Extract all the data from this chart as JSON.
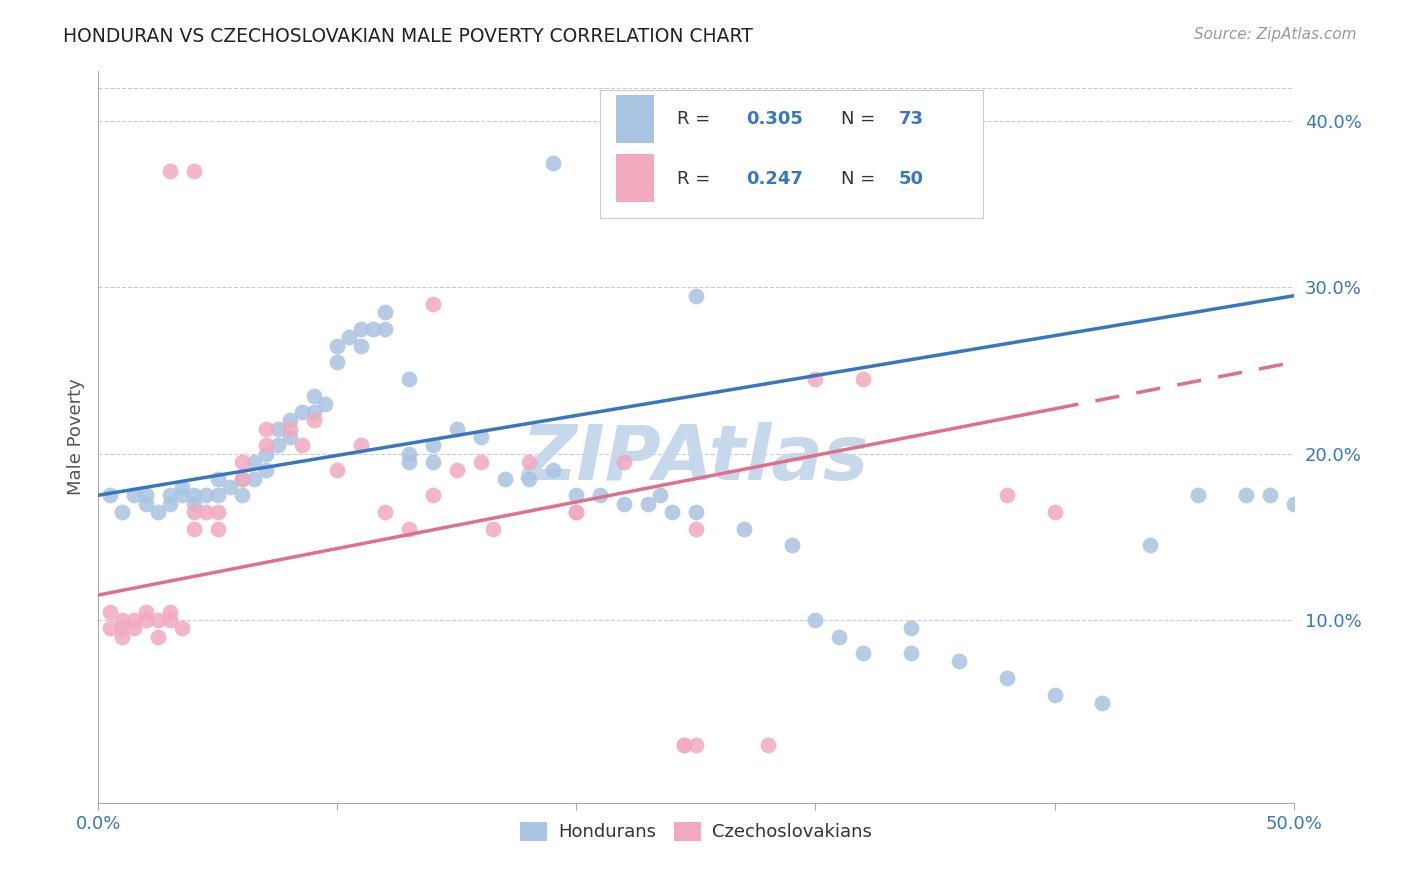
{
  "title": "HONDURAN VS CZECHOSLOVAKIAN MALE POVERTY CORRELATION CHART",
  "source": "Source: ZipAtlas.com",
  "ylabel": "Male Poverty",
  "xlim": [
    0.0,
    0.5
  ],
  "ylim": [
    -0.01,
    0.43
  ],
  "x_ticks": [
    0.0,
    0.1,
    0.2,
    0.3,
    0.4,
    0.5
  ],
  "x_tick_labels_show": [
    "0.0%",
    "",
    "",
    "",
    "",
    "50.0%"
  ],
  "y_ticks_right": [
    0.1,
    0.2,
    0.3,
    0.4
  ],
  "y_tick_labels_right": [
    "10.0%",
    "20.0%",
    "30.0%",
    "40.0%"
  ],
  "honduran_color": "#a8c4e0",
  "czechoslovakian_color": "#f2aabf",
  "trendline_honduran_color": "#3777bf",
  "trendline_czechoslovakian_color": "#e0708a",
  "watermark_color": "#c5d8ec",
  "background_color": "#ffffff",
  "legend_bottom_label1": "Hondurans",
  "legend_bottom_label2": "Czechoslovakians",
  "honduran_x": [
    0.005,
    0.01,
    0.015,
    0.02,
    0.02,
    0.025,
    0.03,
    0.03,
    0.035,
    0.035,
    0.04,
    0.04,
    0.045,
    0.05,
    0.05,
    0.055,
    0.06,
    0.06,
    0.065,
    0.065,
    0.07,
    0.07,
    0.075,
    0.075,
    0.08,
    0.08,
    0.085,
    0.09,
    0.09,
    0.095,
    0.1,
    0.1,
    0.105,
    0.11,
    0.11,
    0.115,
    0.12,
    0.12,
    0.13,
    0.13,
    0.14,
    0.14,
    0.15,
    0.16,
    0.17,
    0.18,
    0.19,
    0.2,
    0.21,
    0.22,
    0.23,
    0.235,
    0.24,
    0.25,
    0.27,
    0.29,
    0.3,
    0.31,
    0.32,
    0.34,
    0.36,
    0.38,
    0.4,
    0.42,
    0.44,
    0.46,
    0.48,
    0.49,
    0.5,
    0.13,
    0.19,
    0.25,
    0.34
  ],
  "honduran_y": [
    0.175,
    0.165,
    0.175,
    0.17,
    0.175,
    0.165,
    0.175,
    0.17,
    0.175,
    0.18,
    0.175,
    0.17,
    0.175,
    0.185,
    0.175,
    0.18,
    0.185,
    0.175,
    0.195,
    0.185,
    0.2,
    0.19,
    0.215,
    0.205,
    0.22,
    0.21,
    0.225,
    0.235,
    0.225,
    0.23,
    0.265,
    0.255,
    0.27,
    0.275,
    0.265,
    0.275,
    0.285,
    0.275,
    0.2,
    0.195,
    0.205,
    0.195,
    0.215,
    0.21,
    0.185,
    0.185,
    0.19,
    0.175,
    0.175,
    0.17,
    0.17,
    0.175,
    0.165,
    0.165,
    0.155,
    0.145,
    0.1,
    0.09,
    0.08,
    0.08,
    0.075,
    0.065,
    0.055,
    0.05,
    0.145,
    0.175,
    0.175,
    0.175,
    0.17,
    0.245,
    0.375,
    0.295,
    0.095
  ],
  "czechoslovakian_x": [
    0.005,
    0.005,
    0.01,
    0.01,
    0.01,
    0.015,
    0.015,
    0.02,
    0.02,
    0.025,
    0.025,
    0.03,
    0.03,
    0.035,
    0.04,
    0.04,
    0.045,
    0.05,
    0.05,
    0.06,
    0.06,
    0.07,
    0.07,
    0.08,
    0.085,
    0.09,
    0.1,
    0.11,
    0.12,
    0.13,
    0.14,
    0.15,
    0.16,
    0.18,
    0.2,
    0.22,
    0.25,
    0.28,
    0.3,
    0.32,
    0.14,
    0.165,
    0.2,
    0.245,
    0.245,
    0.25,
    0.03,
    0.04,
    0.38,
    0.4
  ],
  "czechoslovakian_y": [
    0.095,
    0.105,
    0.1,
    0.095,
    0.09,
    0.1,
    0.095,
    0.105,
    0.1,
    0.1,
    0.09,
    0.105,
    0.1,
    0.095,
    0.165,
    0.155,
    0.165,
    0.165,
    0.155,
    0.195,
    0.185,
    0.215,
    0.205,
    0.215,
    0.205,
    0.22,
    0.19,
    0.205,
    0.165,
    0.155,
    0.175,
    0.19,
    0.195,
    0.195,
    0.165,
    0.195,
    0.025,
    0.025,
    0.245,
    0.245,
    0.29,
    0.155,
    0.165,
    0.025,
    0.025,
    0.155,
    0.37,
    0.37,
    0.175,
    0.165
  ],
  "czecho_trendline_solid_end": 0.4,
  "czecho_trendline_dash_end": 0.5,
  "honduran_trend_x0": 0.0,
  "honduran_trend_x1": 0.5,
  "honduran_trend_y0": 0.175,
  "honduran_trend_y1": 0.295,
  "czecho_trend_x0": 0.0,
  "czecho_trend_x1": 0.5,
  "czecho_trend_y0": 0.115,
  "czecho_trend_y1": 0.255
}
